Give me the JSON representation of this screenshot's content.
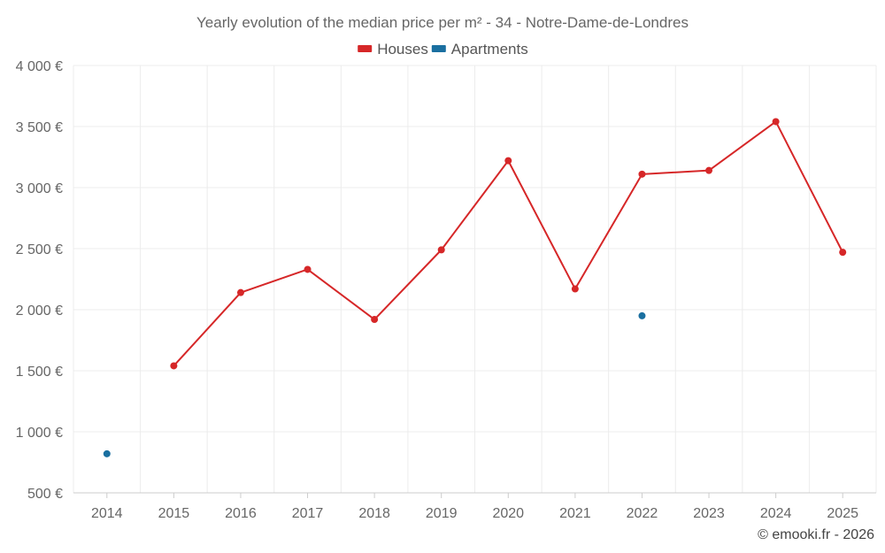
{
  "chart_data": {
    "type": "line",
    "title": "Yearly evolution of the median price per m² - 34 - Notre-Dame-de-Londres",
    "xlabel": "",
    "ylabel": "",
    "categories": [
      "2014",
      "2015",
      "2016",
      "2017",
      "2018",
      "2019",
      "2020",
      "2021",
      "2022",
      "2023",
      "2024",
      "2025"
    ],
    "ylim": [
      500,
      4000
    ],
    "yticks": [
      500,
      1000,
      1500,
      2000,
      2500,
      3000,
      3500,
      4000
    ],
    "ytick_labels": [
      "500 €",
      "1 000 €",
      "1 500 €",
      "2 000 €",
      "2 500 €",
      "3 000 €",
      "3 500 €",
      "4 000 €"
    ],
    "grid": true,
    "legend_position": "top-center",
    "series": [
      {
        "name": "Houses",
        "color": "#d62728",
        "line": true,
        "values": [
          null,
          1540,
          2140,
          2330,
          1920,
          2490,
          3220,
          2170,
          3110,
          3140,
          3540,
          2470
        ]
      },
      {
        "name": "Apartments",
        "color": "#1a6fa0",
        "line": false,
        "values": [
          820,
          null,
          null,
          null,
          null,
          null,
          null,
          null,
          1950,
          null,
          null,
          null
        ]
      }
    ],
    "credit": "© emooki.fr - 2026"
  }
}
